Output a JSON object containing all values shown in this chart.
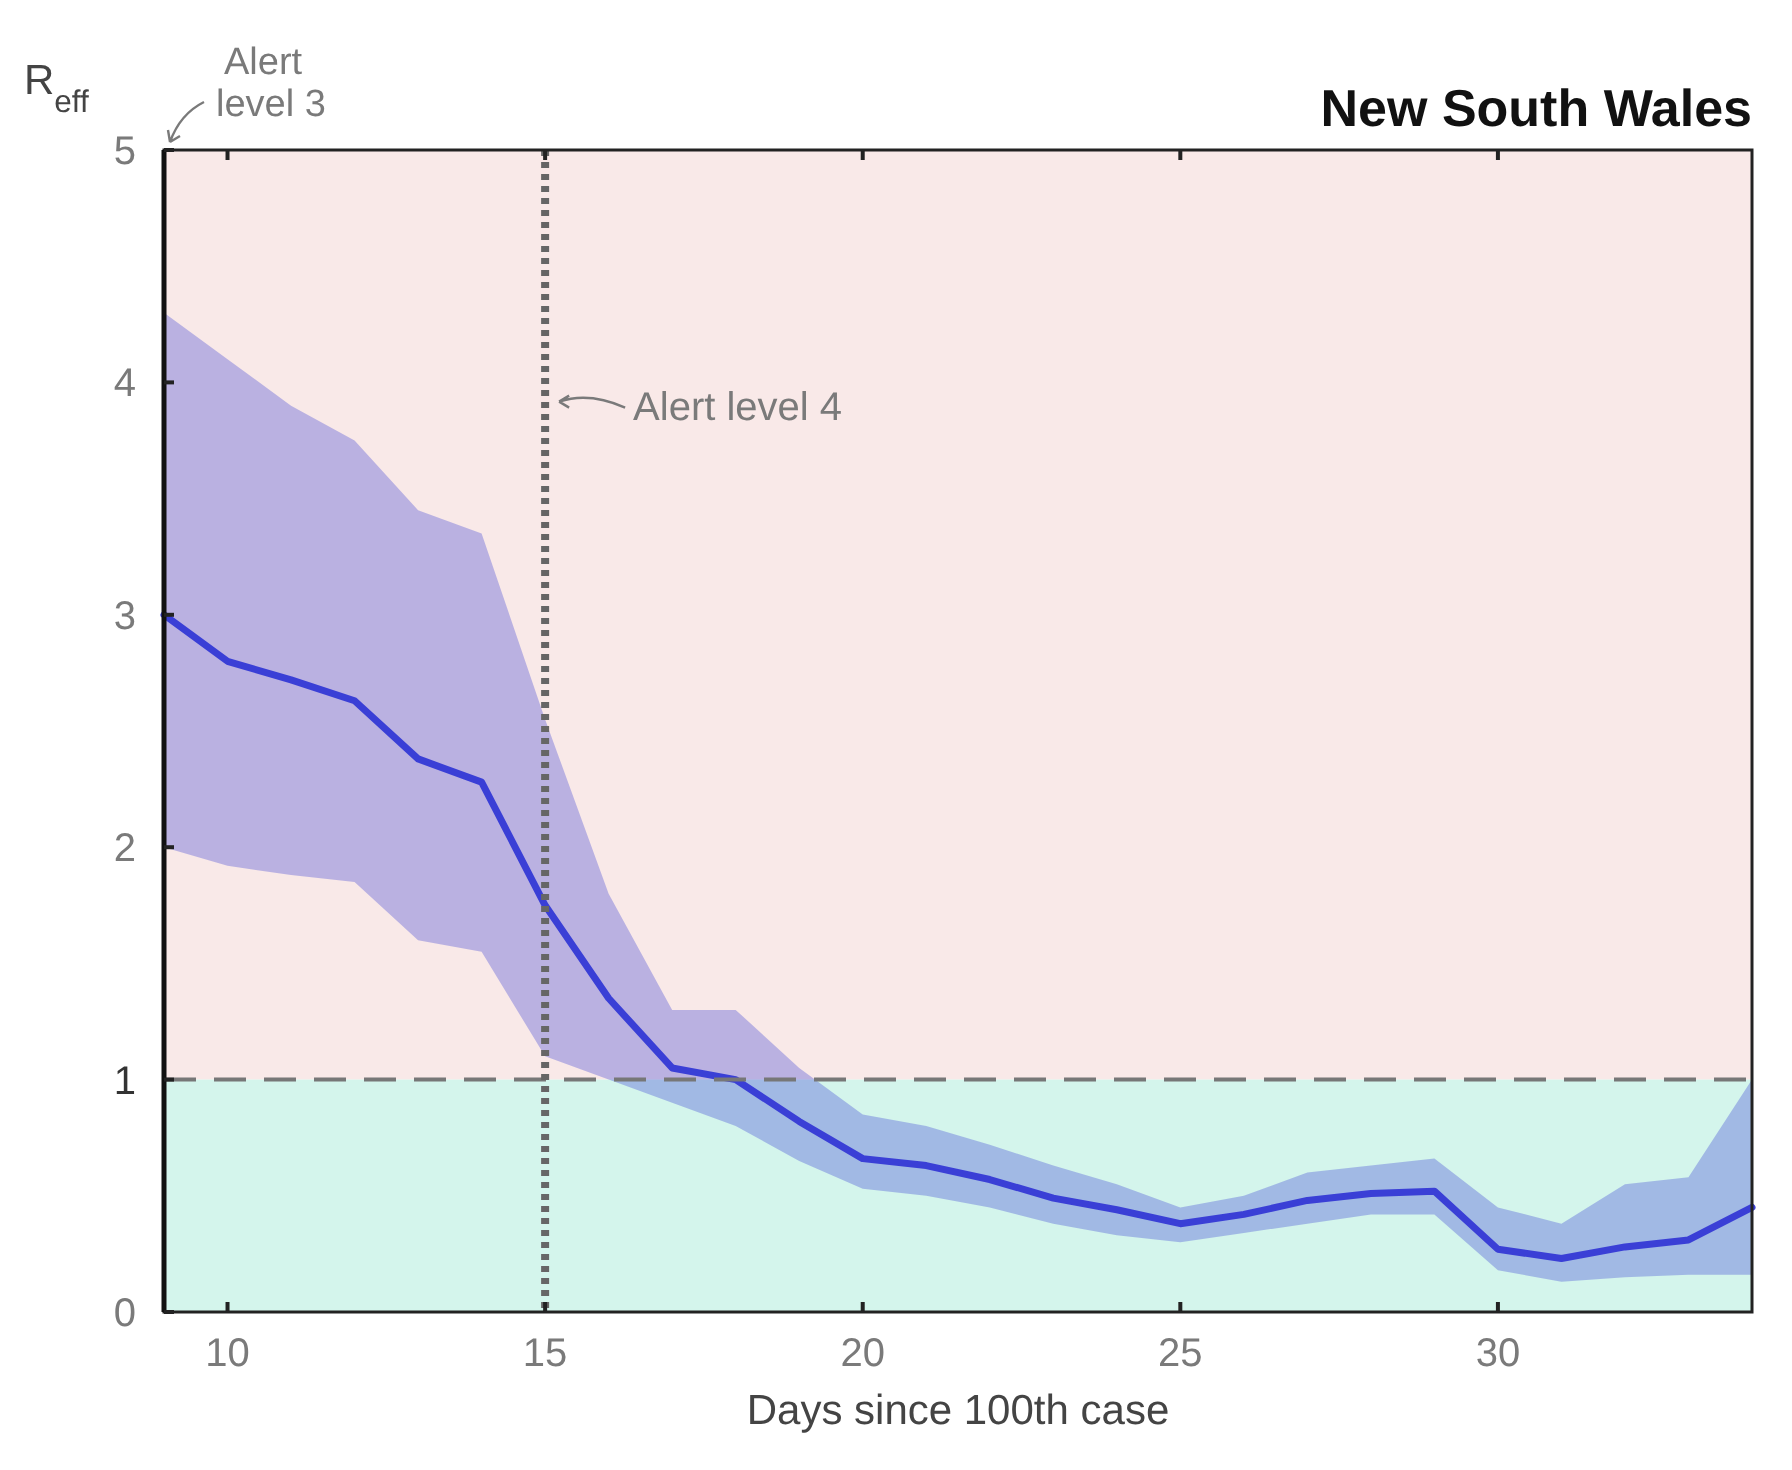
{
  "chart_data": {
    "type": "line",
    "title": "New South Wales",
    "xlabel": "Days since 100th case",
    "ylabel": "R$_{eff}$",
    "x": [
      9,
      10,
      11,
      12,
      13,
      14,
      15,
      16,
      17,
      18,
      19,
      20,
      21,
      22,
      23,
      24,
      25,
      26,
      27,
      28,
      29,
      30,
      31,
      32,
      33,
      34
    ],
    "series": [
      {
        "color": "#3a3fd6",
        "values": [
          3.0,
          2.8,
          2.72,
          2.63,
          2.38,
          2.28,
          1.75,
          1.35,
          1.05,
          1.0,
          0.82,
          0.66,
          0.63,
          0.57,
          0.49,
          0.44,
          0.38,
          0.42,
          0.48,
          0.51,
          0.52,
          0.27,
          0.23,
          0.28,
          0.31,
          0.45
        ],
        "lower": [
          2.0,
          1.92,
          1.88,
          1.85,
          1.6,
          1.55,
          1.1,
          1.0,
          0.9,
          0.8,
          0.65,
          0.53,
          0.5,
          0.45,
          0.38,
          0.33,
          0.3,
          0.34,
          0.38,
          0.42,
          0.42,
          0.18,
          0.13,
          0.15,
          0.16,
          0.16
        ],
        "upper": [
          4.3,
          4.1,
          3.9,
          3.75,
          3.45,
          3.35,
          2.55,
          1.8,
          1.3,
          1.3,
          1.05,
          0.85,
          0.8,
          0.72,
          0.63,
          0.55,
          0.45,
          0.5,
          0.6,
          0.63,
          0.66,
          0.45,
          0.38,
          0.55,
          0.58,
          1.0
        ]
      }
    ],
    "xlim": [
      9,
      34
    ],
    "ylim": [
      0,
      5
    ],
    "xticks": [
      10,
      15,
      20,
      25,
      30
    ],
    "yticks": [
      0,
      1,
      2,
      3,
      4,
      5
    ],
    "bands": [
      {
        "axis": "y",
        "from": 1,
        "to": 5,
        "color": "#f9e9e8"
      },
      {
        "axis": "y",
        "from": 0,
        "to": 1,
        "color": "#d4f5ec"
      }
    ],
    "ref_lines": [
      {
        "axis": "y",
        "value": 1,
        "color": "#777777",
        "line_style": "dashed"
      },
      {
        "axis": "x",
        "value": 15,
        "label": "Alert level 4",
        "color": "#666666",
        "line_style": "dotted"
      }
    ],
    "annotations": [
      {
        "text": "Alert level 3",
        "x": 9,
        "y": 5
      }
    ],
    "grid": false,
    "marker": "none",
    "line_style": "solid"
  }
}
